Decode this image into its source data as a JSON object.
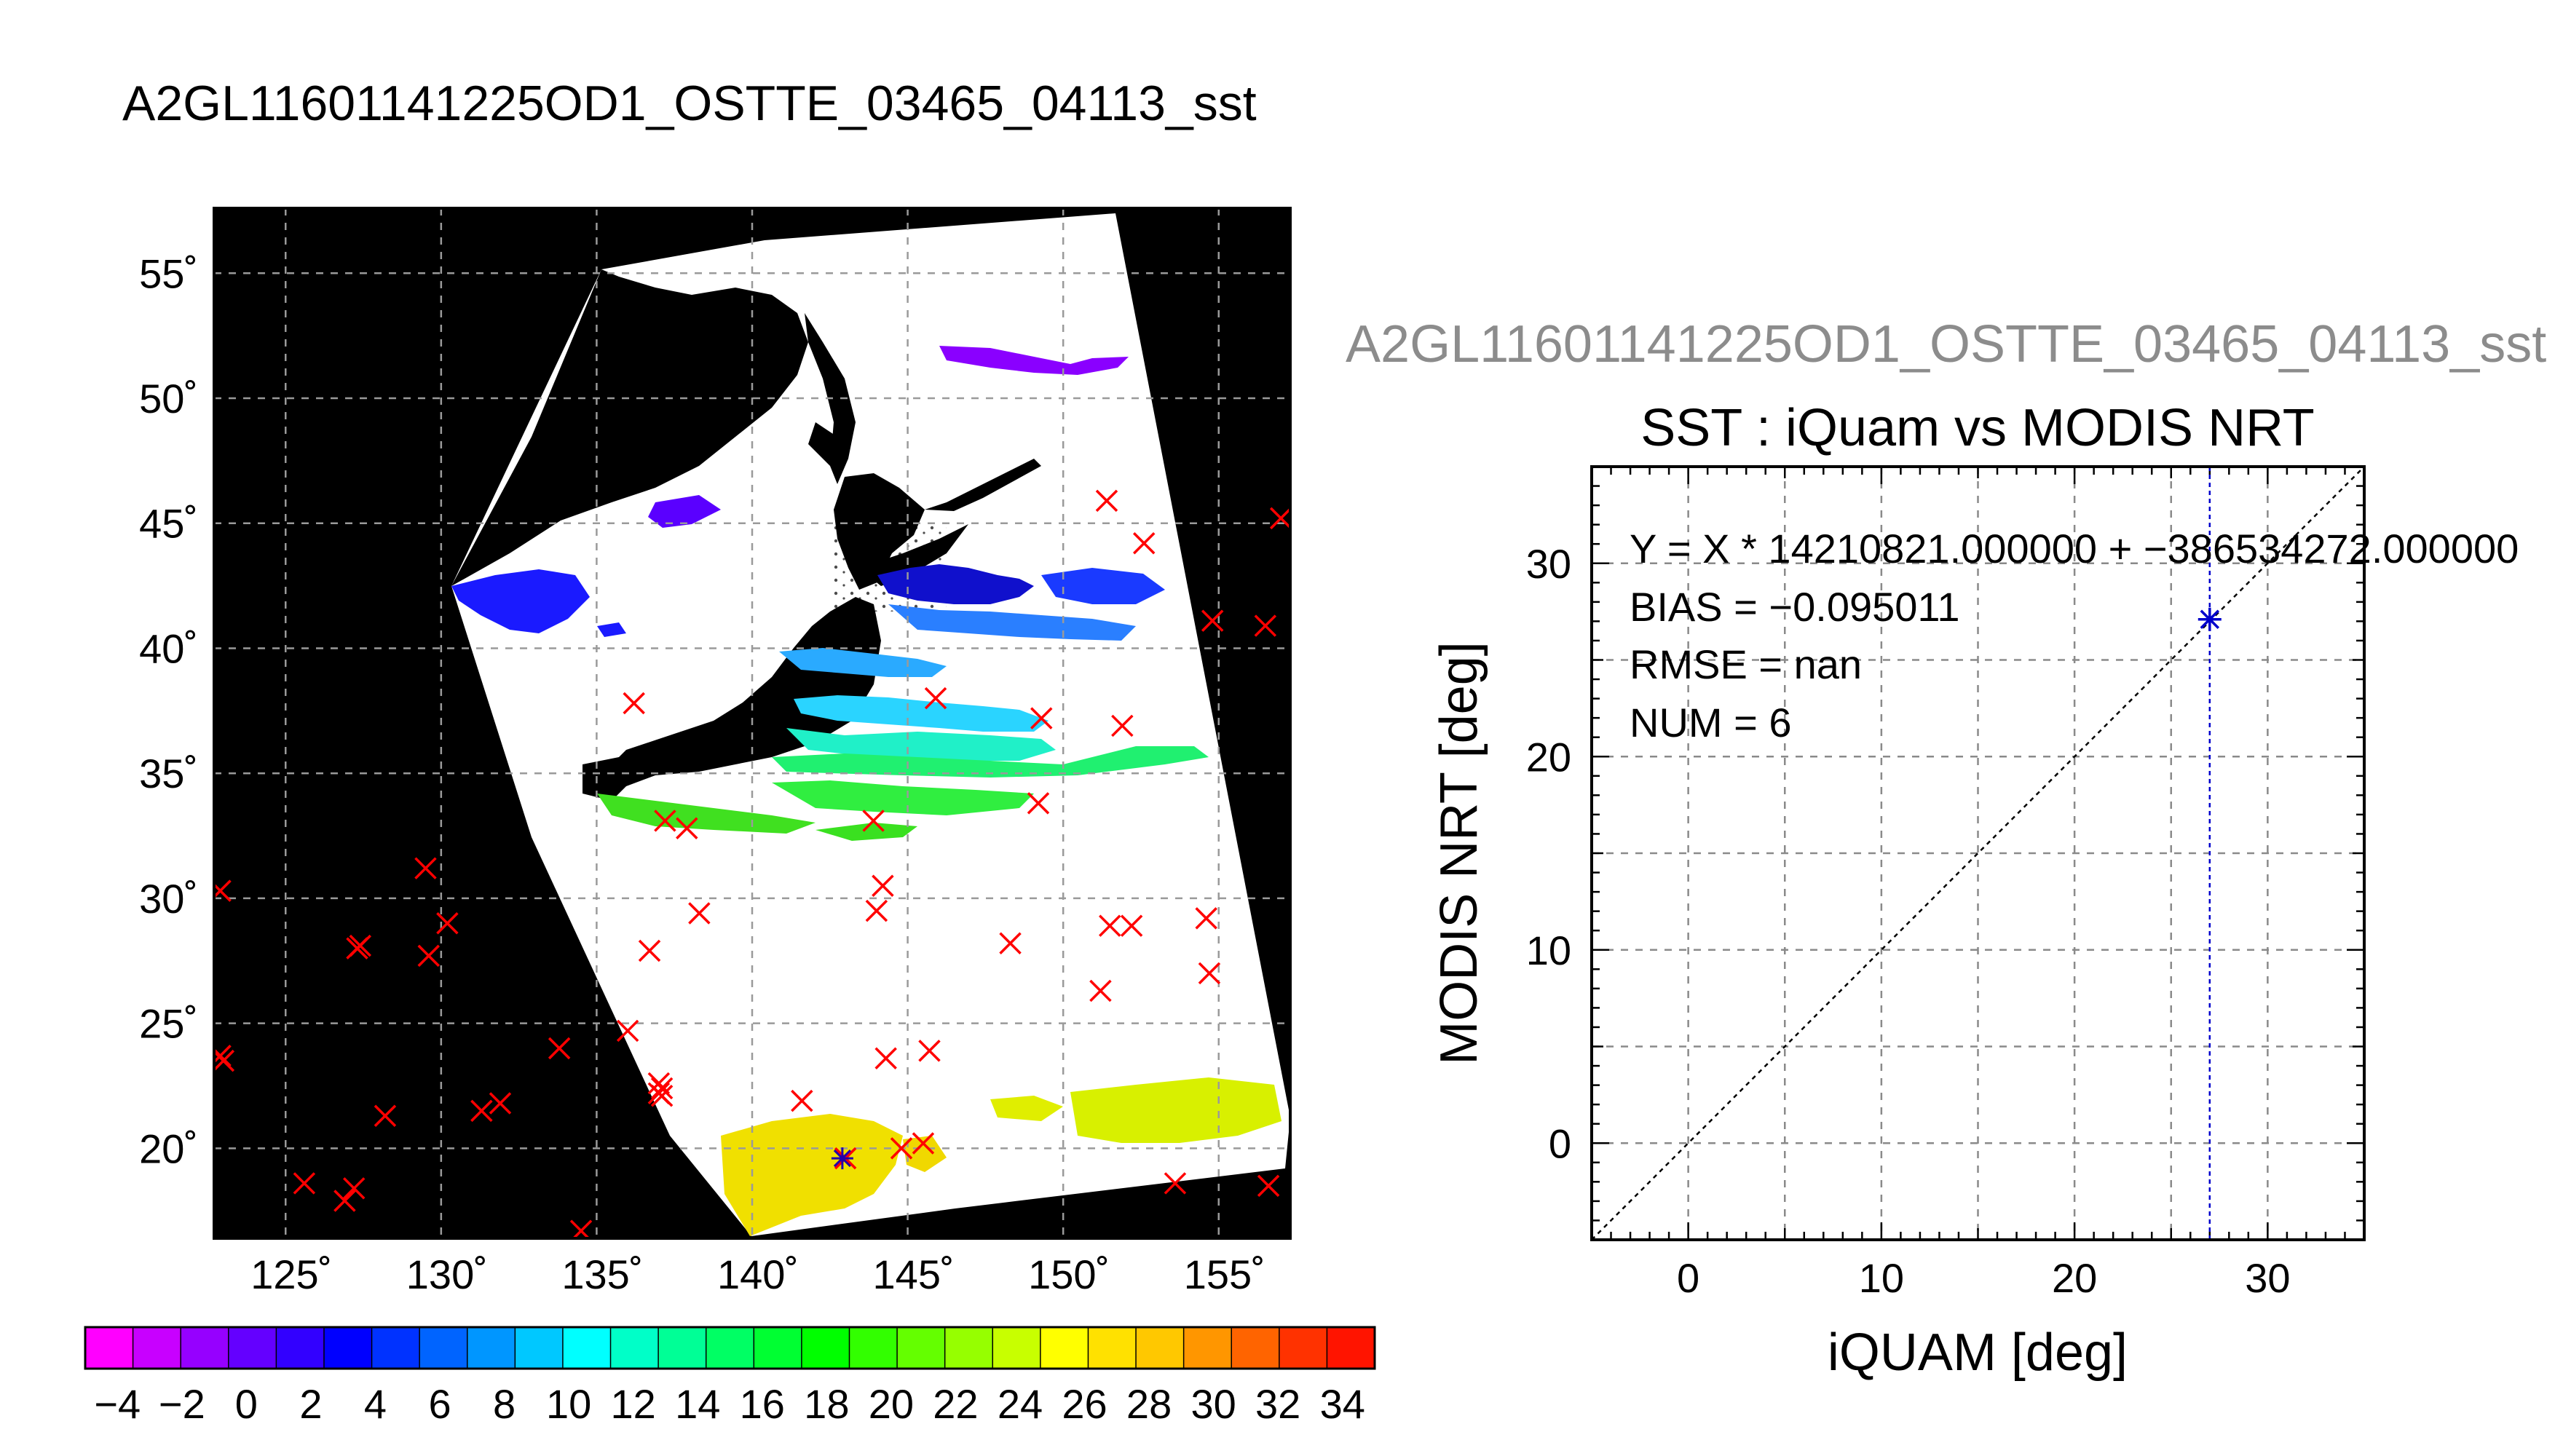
{
  "figure": {
    "main_title": "A2GL11601141225OD1_OSTTE_03465_04113_sst",
    "subtitle": "A2GL11601141225OD1_OSTTE_03465_04113_sst"
  },
  "chart_data": [
    {
      "type": "map",
      "lon_ticks": [
        "125˚",
        "130˚",
        "135˚",
        "140˚",
        "145˚",
        "150˚",
        "155˚"
      ],
      "lat_ticks": [
        "55˚",
        "50˚",
        "45˚",
        "40˚",
        "35˚",
        "30˚",
        "25˚",
        "20˚"
      ],
      "lon_range": [
        122.7,
        157.3
      ],
      "lat_range": [
        16.4,
        57.6
      ],
      "grid": true,
      "markers_x": [
        [
          122.9,
          30.3
        ],
        [
          122.9,
          23.7
        ],
        [
          123.0,
          23.5
        ],
        [
          125.6,
          18.6
        ],
        [
          126.9,
          17.9
        ],
        [
          127.2,
          18.4
        ],
        [
          127.3,
          28.0
        ],
        [
          127.4,
          28.1
        ],
        [
          128.2,
          21.3
        ],
        [
          129.5,
          31.2
        ],
        [
          129.6,
          27.7
        ],
        [
          130.2,
          29.0
        ],
        [
          131.3,
          21.5
        ],
        [
          131.9,
          21.8
        ],
        [
          133.8,
          24.0
        ],
        [
          134.5,
          16.7
        ],
        [
          136.0,
          24.7
        ],
        [
          136.2,
          37.8
        ],
        [
          136.7,
          27.9
        ],
        [
          137.0,
          22.6
        ],
        [
          137.0,
          22.2
        ],
        [
          137.1,
          22.1
        ],
        [
          137.1,
          22.4
        ],
        [
          137.2,
          33.1
        ],
        [
          137.9,
          32.8
        ],
        [
          138.3,
          29.4
        ],
        [
          141.6,
          21.9
        ],
        [
          143.0,
          19.6
        ],
        [
          143.9,
          33.1
        ],
        [
          144.0,
          29.5
        ],
        [
          144.2,
          30.5
        ],
        [
          144.3,
          23.6
        ],
        [
          144.8,
          20.0
        ],
        [
          145.5,
          20.2
        ],
        [
          145.7,
          23.9
        ],
        [
          145.9,
          38.0
        ],
        [
          148.3,
          28.2
        ],
        [
          149.2,
          33.8
        ],
        [
          149.3,
          37.2
        ],
        [
          151.2,
          26.3
        ],
        [
          151.4,
          45.9
        ],
        [
          151.5,
          28.9
        ],
        [
          151.9,
          36.9
        ],
        [
          152.2,
          28.9
        ],
        [
          152.6,
          44.2
        ],
        [
          153.6,
          18.6
        ],
        [
          154.6,
          29.2
        ],
        [
          154.7,
          27.0
        ],
        [
          154.8,
          41.1
        ],
        [
          156.5,
          40.9
        ],
        [
          156.6,
          18.5
        ],
        [
          157.0,
          45.2
        ]
      ],
      "marker_star": [
        142.9,
        19.6
      ]
    },
    {
      "type": "scatter",
      "title": "SST : iQuam vs MODIS NRT",
      "xlabel": "iQUAM [deg]",
      "ylabel": "MODIS NRT [deg]",
      "xlim": [
        -5,
        35
      ],
      "ylim": [
        -5,
        35
      ],
      "x_ticks": [
        0,
        10,
        20,
        30
      ],
      "y_ticks": [
        0,
        10,
        20,
        30
      ],
      "grid": true,
      "points": [
        [
          27.0,
          27.1
        ]
      ],
      "vline_x": 27.0,
      "one_to_one_line": true,
      "annotations": [
        "Y = X * 14210821.000000 + −386534272.000000",
        "BIAS = −0.095011",
        "RMSE = nan",
        "NUM = 6"
      ]
    },
    {
      "type": "colorbar",
      "vmin": -5,
      "vmax": 35,
      "tick_labels": [
        "−4",
        "−2",
        "0",
        "2",
        "4",
        "6",
        "8",
        "10",
        "12",
        "14",
        "16",
        "18",
        "20",
        "22",
        "24",
        "26",
        "28",
        "30",
        "32",
        "34"
      ],
      "tick_values": [
        -4,
        -2,
        0,
        2,
        4,
        6,
        8,
        10,
        12,
        14,
        16,
        18,
        20,
        22,
        24,
        26,
        28,
        30,
        32,
        34
      ],
      "colors": [
        "#ff00ff",
        "#c800ff",
        "#9600ff",
        "#6400ff",
        "#3200ff",
        "#0000ff",
        "#0032ff",
        "#0064ff",
        "#0096ff",
        "#00c8ff",
        "#00ffff",
        "#00ffc8",
        "#00ff96",
        "#00ff64",
        "#00ff32",
        "#00ff00",
        "#32ff00",
        "#64ff00",
        "#96ff00",
        "#c8ff00",
        "#ffff00",
        "#ffe100",
        "#ffc800",
        "#ff9600",
        "#ff6400",
        "#ff3200",
        "#ff1400"
      ]
    }
  ]
}
